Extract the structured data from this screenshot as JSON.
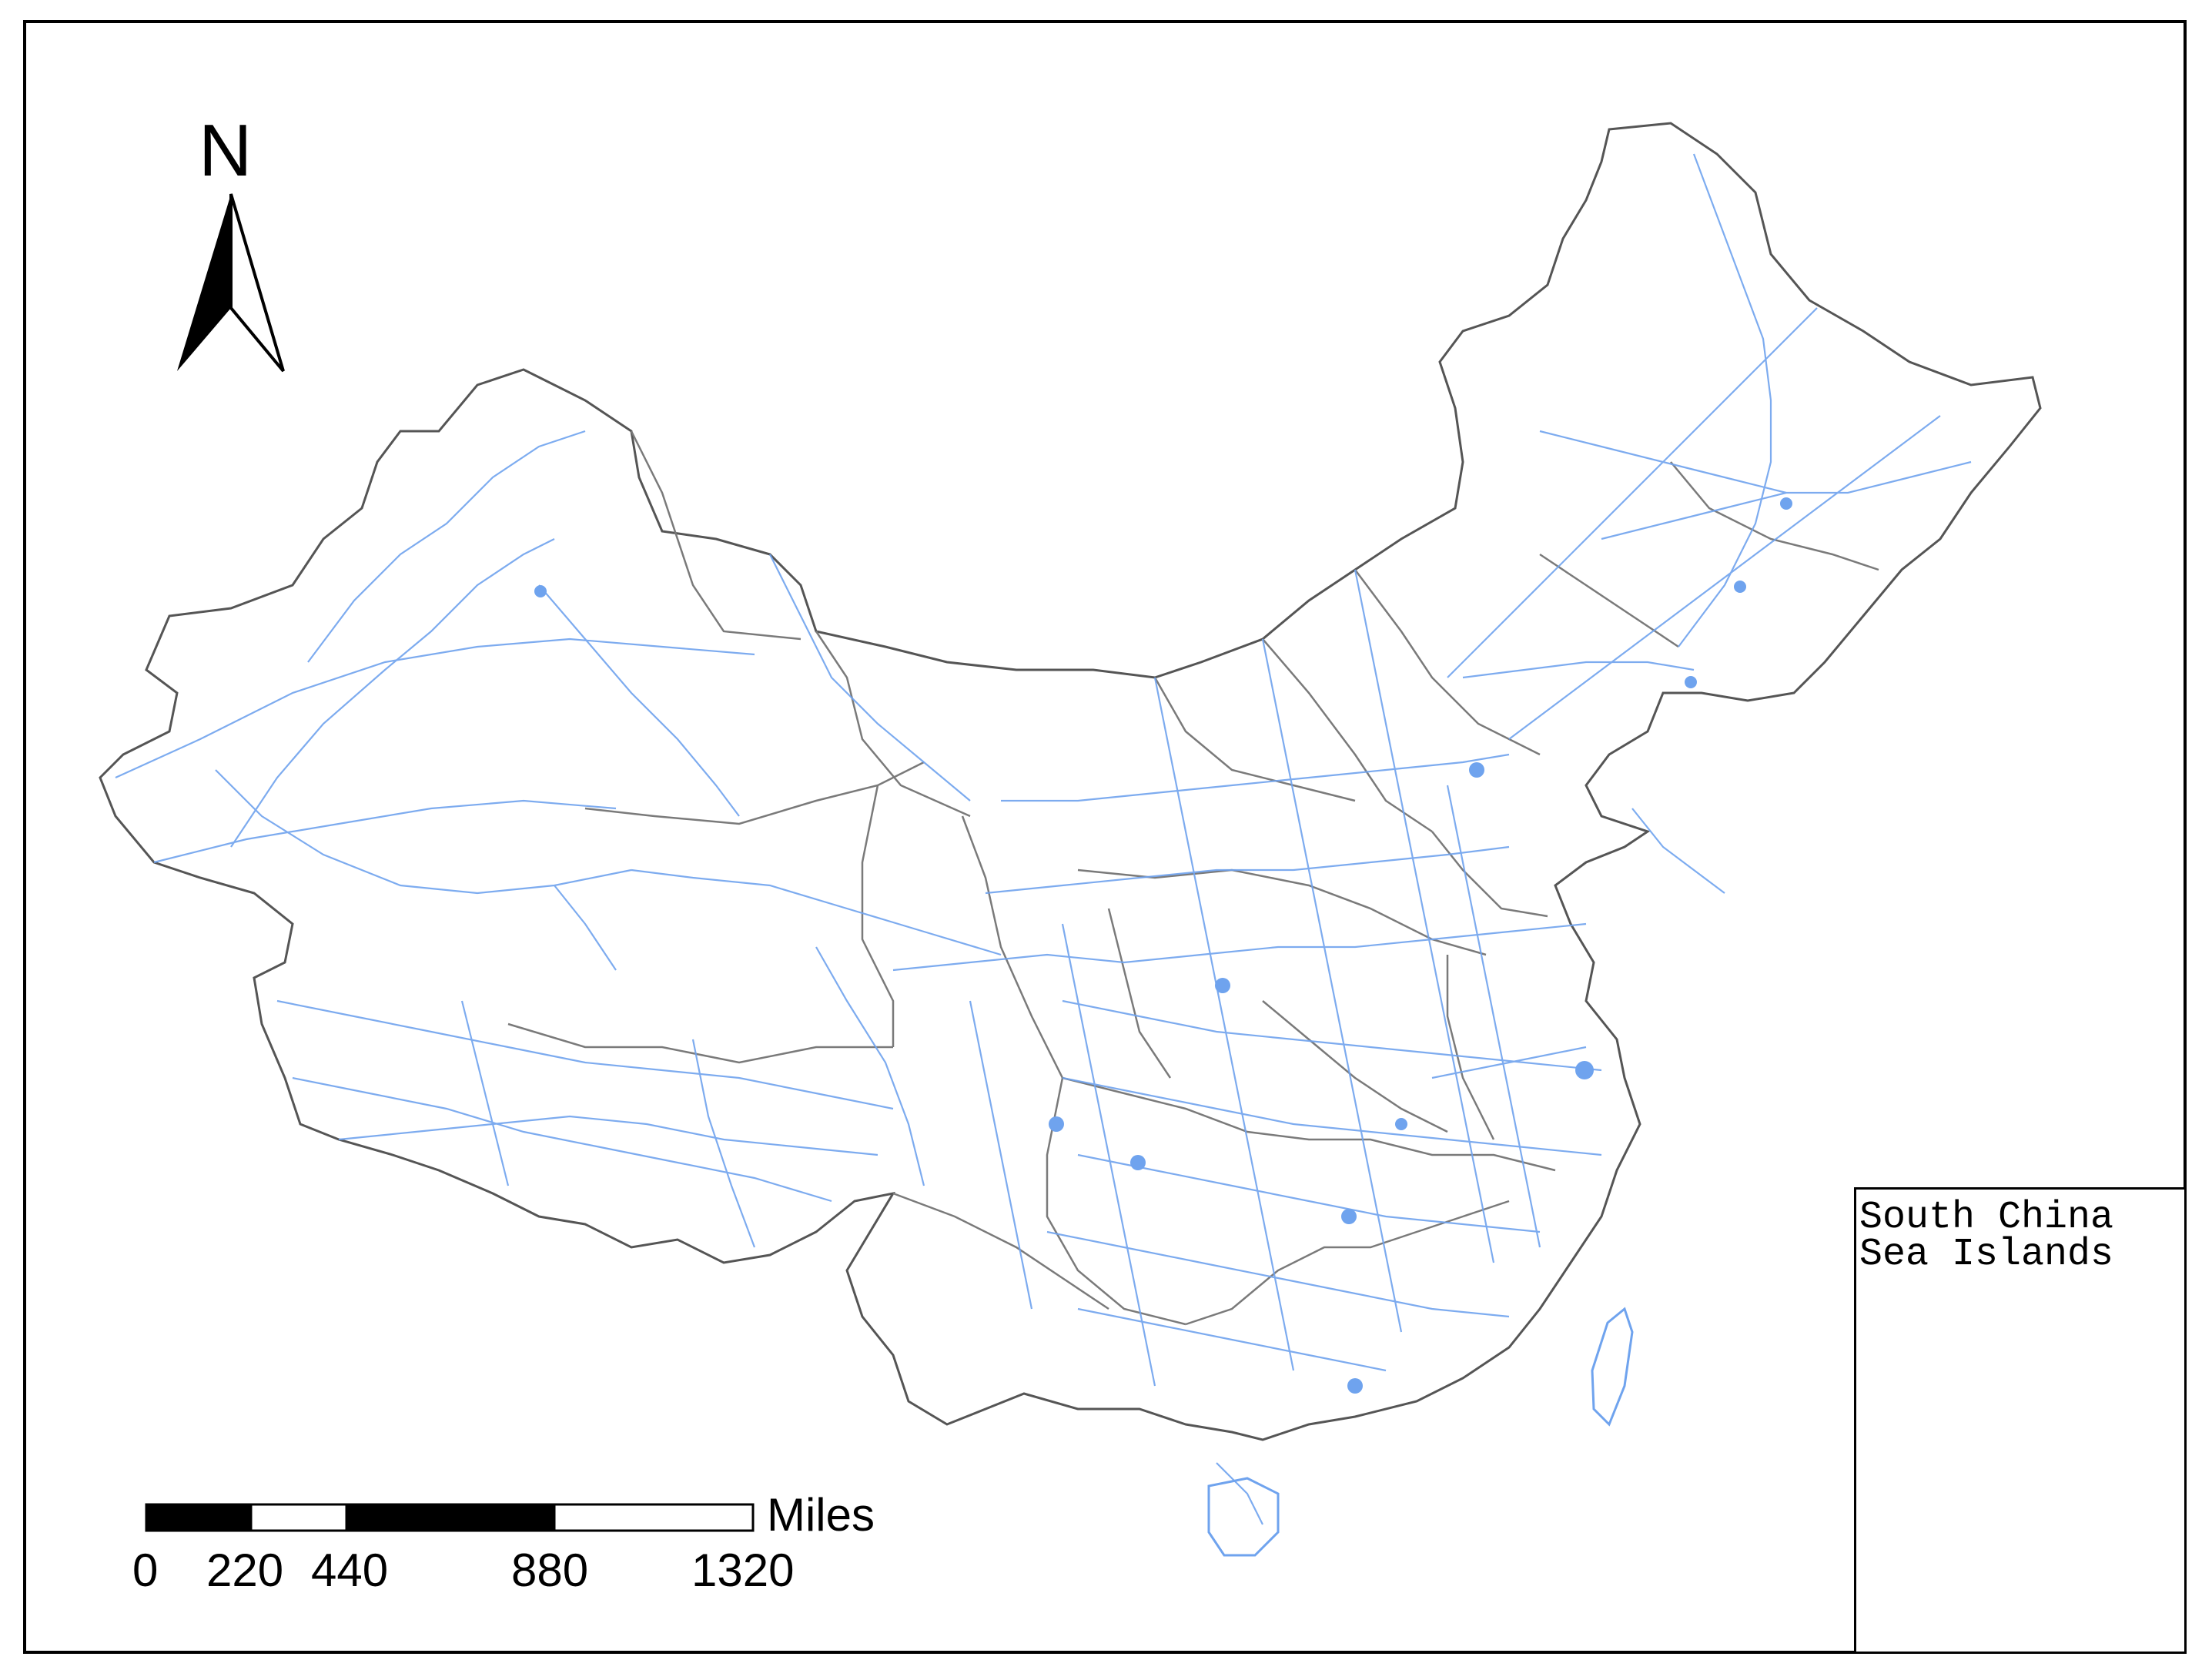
{
  "north_arrow": {
    "label": "N"
  },
  "scale_bar": {
    "unit": "Miles",
    "ticks": [
      "0",
      "220",
      "440",
      "880",
      "1320"
    ]
  },
  "inset": {
    "title_line1": "South China",
    "title_line2": "Sea Islands"
  },
  "colors": {
    "roads": "#6fa3ee",
    "province_borders": "#7a7a7a",
    "islands": "#b52a1a"
  }
}
